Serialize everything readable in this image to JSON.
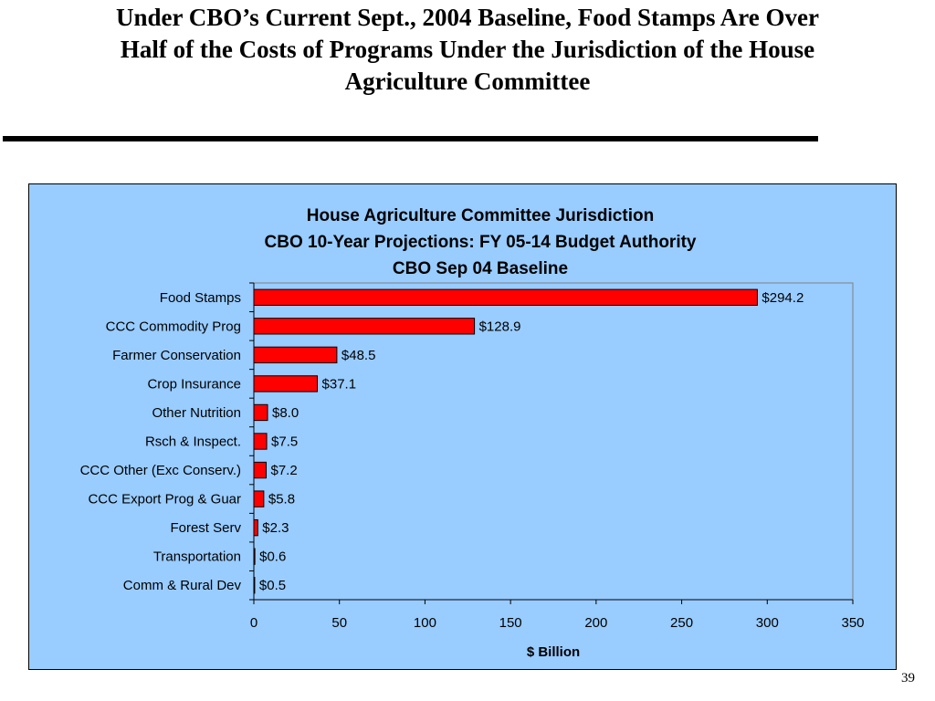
{
  "slide": {
    "title_lines": [
      "Under CBO’s Current Sept., 2004 Baseline, Food Stamps Are Over",
      "Half of the Costs of Programs Under the Jurisdiction of the House",
      "Agriculture Committee"
    ],
    "page_number": "39"
  },
  "chart_data": {
    "type": "bar",
    "orientation": "horizontal",
    "title_lines": [
      "House Agriculture Committee Jurisdiction",
      "CBO 10-Year Projections:  FY 05-14 Budget Authority",
      "CBO Sep 04 Baseline"
    ],
    "xlabel": "$ Billion",
    "ylabel": "",
    "categories": [
      "Food Stamps",
      "CCC Commodity Prog",
      "Farmer Conservation",
      "Crop Insurance",
      "Other Nutrition",
      "Rsch & Inspect.",
      "CCC Other (Exc Conserv.)",
      "CCC Export Prog & Guar",
      "Forest Serv",
      "Transportation",
      "Comm & Rural Dev"
    ],
    "values": [
      294.2,
      128.9,
      48.5,
      37.1,
      8.0,
      7.5,
      7.2,
      5.8,
      2.3,
      0.6,
      0.5
    ],
    "data_labels": [
      "$294.2",
      "$128.9",
      "$48.5",
      "$37.1",
      "$8.0",
      "$7.5",
      "$7.2",
      "$5.8",
      "$2.3",
      "$0.6",
      "$0.5"
    ],
    "xlim": [
      0,
      350
    ],
    "xticks": [
      0,
      50,
      100,
      150,
      200,
      250,
      300,
      350
    ],
    "grid": false,
    "legend": "none",
    "colors": {
      "bar": "#ff0000",
      "plot_background": "#99ccff",
      "slide_background": "#ffffff"
    }
  }
}
